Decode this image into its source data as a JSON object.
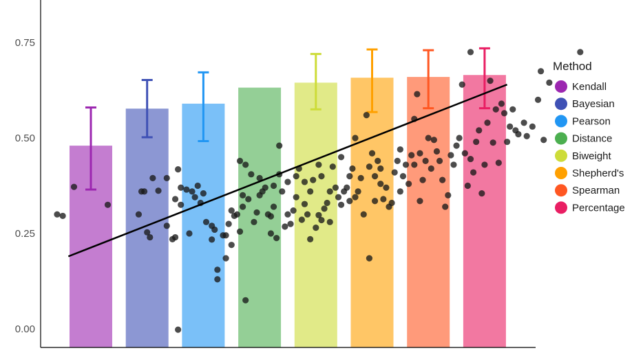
{
  "chart_data": {
    "type": "bar",
    "categories": [
      "Kendall",
      "Bayesian",
      "Pearson",
      "Distance",
      "Biweight",
      "Shepherd's",
      "Spearman",
      "Percentage"
    ],
    "values": [
      0.48,
      0.577,
      0.59,
      0.632,
      0.645,
      0.658,
      0.66,
      0.665
    ],
    "error_bars": [
      {
        "low": 0.365,
        "high": 0.58
      },
      {
        "low": 0.502,
        "high": 0.652
      },
      {
        "low": 0.492,
        "high": 0.672
      },
      null,
      {
        "low": 0.575,
        "high": 0.72
      },
      {
        "low": 0.568,
        "high": 0.732
      },
      {
        "low": 0.578,
        "high": 0.73
      },
      {
        "low": 0.578,
        "high": 0.735
      }
    ],
    "colors": [
      "#9c27b0",
      "#3f51b5",
      "#2196f3",
      "#4caf50",
      "#cddc39",
      "#ffa000",
      "#ff5722",
      "#e91e63"
    ],
    "bar_opacity": 0.6,
    "ylim": [
      -0.04,
      0.86
    ],
    "yticks": [
      0.0,
      0.25,
      0.5,
      0.75
    ],
    "ytick_labels": [
      "0.00",
      "0.25",
      "0.50",
      "0.75"
    ],
    "show_x_tick_labels": false,
    "grid": false,
    "legend": {
      "title": "Method",
      "position": "right",
      "entries": [
        "Kendall",
        "Bayesian",
        "Pearson",
        "Distance",
        "Biweight",
        "Shepherd's",
        "Spearman",
        "Percentage"
      ]
    },
    "trend_line": {
      "x_start": 0.6,
      "y_start": 0.19,
      "x_end": 8.4,
      "y_end": 0.64,
      "color": "#000000"
    },
    "points": [
      [
        0.4,
        0.3
      ],
      [
        0.5,
        0.296
      ],
      [
        0.7,
        0.372
      ],
      [
        1.3,
        0.325
      ],
      [
        1.85,
        0.3
      ],
      [
        1.9,
        0.36
      ],
      [
        1.95,
        0.36
      ],
      [
        2.0,
        0.253
      ],
      [
        2.05,
        0.24
      ],
      [
        2.1,
        0.395
      ],
      [
        2.2,
        0.362
      ],
      [
        2.35,
        0.27
      ],
      [
        2.35,
        0.395
      ],
      [
        2.45,
        0.235
      ],
      [
        2.5,
        0.34
      ],
      [
        2.5,
        0.24
      ],
      [
        2.55,
        0.418
      ],
      [
        2.6,
        0.325
      ],
      [
        2.6,
        0.37
      ],
      [
        2.7,
        0.365
      ],
      [
        2.75,
        0.25
      ],
      [
        2.8,
        0.36
      ],
      [
        2.85,
        0.345
      ],
      [
        2.9,
        0.375
      ],
      [
        2.95,
        0.33
      ],
      [
        3.0,
        0.355
      ],
      [
        2.55,
        -0.002
      ],
      [
        3.05,
        0.28
      ],
      [
        3.15,
        0.234
      ],
      [
        3.15,
        0.27
      ],
      [
        3.2,
        0.26
      ],
      [
        3.25,
        0.13
      ],
      [
        3.25,
        0.155
      ],
      [
        3.35,
        0.245
      ],
      [
        3.4,
        0.185
      ],
      [
        3.4,
        0.245
      ],
      [
        3.45,
        0.275
      ],
      [
        3.5,
        0.31
      ],
      [
        3.5,
        0.22
      ],
      [
        3.55,
        0.296
      ],
      [
        3.6,
        0.3
      ],
      [
        3.65,
        0.44
      ],
      [
        3.65,
        0.255
      ],
      [
        3.7,
        0.32
      ],
      [
        3.7,
        0.35
      ],
      [
        3.75,
        0.43
      ],
      [
        3.75,
        0.075
      ],
      [
        3.8,
        0.34
      ],
      [
        3.85,
        0.405
      ],
      [
        3.9,
        0.28
      ],
      [
        3.95,
        0.305
      ],
      [
        4.0,
        0.395
      ],
      [
        4.0,
        0.35
      ],
      [
        4.05,
        0.36
      ],
      [
        4.1,
        0.37
      ],
      [
        4.15,
        0.3
      ],
      [
        4.2,
        0.25
      ],
      [
        4.2,
        0.295
      ],
      [
        4.25,
        0.32
      ],
      [
        4.25,
        0.375
      ],
      [
        4.3,
        0.238
      ],
      [
        4.35,
        0.48
      ],
      [
        4.35,
        0.405
      ],
      [
        4.4,
        0.36
      ],
      [
        4.45,
        0.268
      ],
      [
        4.5,
        0.385
      ],
      [
        4.5,
        0.3
      ],
      [
        4.55,
        0.275
      ],
      [
        4.6,
        0.31
      ],
      [
        4.65,
        0.4
      ],
      [
        4.65,
        0.345
      ],
      [
        4.7,
        0.42
      ],
      [
        4.75,
        0.286
      ],
      [
        4.8,
        0.385
      ],
      [
        4.8,
        0.327
      ],
      [
        4.85,
        0.3
      ],
      [
        4.9,
        0.36
      ],
      [
        4.9,
        0.235
      ],
      [
        4.95,
        0.39
      ],
      [
        5.0,
        0.265
      ],
      [
        5.05,
        0.298
      ],
      [
        5.05,
        0.43
      ],
      [
        5.1,
        0.4
      ],
      [
        5.1,
        0.285
      ],
      [
        5.15,
        0.315
      ],
      [
        5.2,
        0.33
      ],
      [
        5.25,
        0.36
      ],
      [
        5.25,
        0.28
      ],
      [
        5.3,
        0.425
      ],
      [
        5.35,
        0.37
      ],
      [
        5.4,
        0.345
      ],
      [
        5.45,
        0.45
      ],
      [
        5.45,
        0.325
      ],
      [
        5.5,
        0.36
      ],
      [
        5.55,
        0.37
      ],
      [
        5.6,
        0.4
      ],
      [
        5.6,
        0.335
      ],
      [
        5.65,
        0.42
      ],
      [
        5.7,
        0.345
      ],
      [
        5.7,
        0.5
      ],
      [
        5.75,
        0.36
      ],
      [
        5.8,
        0.395
      ],
      [
        5.85,
        0.3
      ],
      [
        5.9,
        0.56
      ],
      [
        5.95,
        0.425
      ],
      [
        5.95,
        0.185
      ],
      [
        6.0,
        0.46
      ],
      [
        6.05,
        0.4
      ],
      [
        6.05,
        0.335
      ],
      [
        6.1,
        0.44
      ],
      [
        6.15,
        0.38
      ],
      [
        6.15,
        0.42
      ],
      [
        6.2,
        0.34
      ],
      [
        6.25,
        0.37
      ],
      [
        6.3,
        0.32
      ],
      [
        6.35,
        0.33
      ],
      [
        6.4,
        0.41
      ],
      [
        6.45,
        0.44
      ],
      [
        6.5,
        0.47
      ],
      [
        6.5,
        0.36
      ],
      [
        6.55,
        0.4
      ],
      [
        6.6,
        0.43
      ],
      [
        6.65,
        0.38
      ],
      [
        6.7,
        0.455
      ],
      [
        6.75,
        0.55
      ],
      [
        6.75,
        0.43
      ],
      [
        6.8,
        0.615
      ],
      [
        6.85,
        0.46
      ],
      [
        6.85,
        0.335
      ],
      [
        6.9,
        0.39
      ],
      [
        6.95,
        0.44
      ],
      [
        7.0,
        0.5
      ],
      [
        7.05,
        0.42
      ],
      [
        7.1,
        0.495
      ],
      [
        7.15,
        0.465
      ],
      [
        7.2,
        0.44
      ],
      [
        7.25,
        0.39
      ],
      [
        7.3,
        0.32
      ],
      [
        7.35,
        0.35
      ],
      [
        7.4,
        0.455
      ],
      [
        7.45,
        0.43
      ],
      [
        7.5,
        0.48
      ],
      [
        7.55,
        0.5
      ],
      [
        7.6,
        0.64
      ],
      [
        7.65,
        0.46
      ],
      [
        7.7,
        0.375
      ],
      [
        7.75,
        0.445
      ],
      [
        7.8,
        0.41
      ],
      [
        7.85,
        0.49
      ],
      [
        7.9,
        0.52
      ],
      [
        7.95,
        0.355
      ],
      [
        8.0,
        0.43
      ],
      [
        8.05,
        0.54
      ],
      [
        8.1,
        0.65
      ],
      [
        8.15,
        0.488
      ],
      [
        8.2,
        0.575
      ],
      [
        8.25,
        0.435
      ],
      [
        8.3,
        0.59
      ],
      [
        8.35,
        0.565
      ],
      [
        8.4,
        0.49
      ],
      [
        8.45,
        0.53
      ],
      [
        8.5,
        0.575
      ],
      [
        8.55,
        0.52
      ],
      [
        8.6,
        0.51
      ],
      [
        8.7,
        0.54
      ],
      [
        8.75,
        0.505
      ],
      [
        8.85,
        0.53
      ],
      [
        8.95,
        0.6
      ],
      [
        9.0,
        0.675
      ],
      [
        9.05,
        0.495
      ],
      [
        9.15,
        0.645
      ],
      [
        7.75,
        0.725
      ],
      [
        9.7,
        0.725
      ]
    ]
  }
}
